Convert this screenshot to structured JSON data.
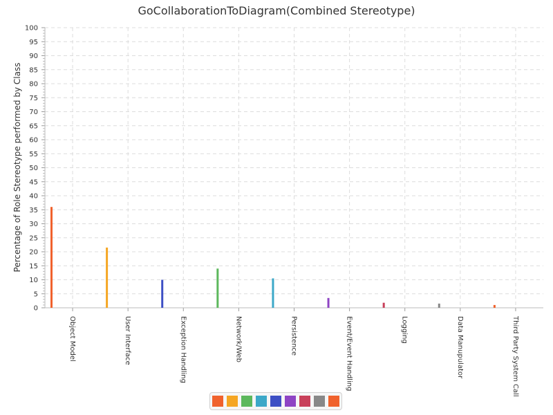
{
  "chart_data": {
    "type": "bar",
    "title": "GoCollaborationToDiagram(Combined Stereotype)",
    "xlabel": "",
    "ylabel": "Percentage of Role Stereotype performed by Class",
    "ylim": [
      0,
      100
    ],
    "ytick_step": 5,
    "yticks": [
      "0",
      "5",
      "10",
      "15",
      "20",
      "25",
      "30",
      "35",
      "40",
      "45",
      "50",
      "55",
      "60",
      "65",
      "70",
      "75",
      "80",
      "85",
      "90",
      "95",
      "100"
    ],
    "grid": true,
    "legend_position": "bottom",
    "categories": [
      "Object Model",
      "User Interface",
      "Exception Handling",
      "Network/Web",
      "Persistence",
      "Event/Event Handling",
      "Logging",
      "Data Manupulator",
      "Third Party System Call"
    ],
    "values": [
      36,
      21.5,
      10,
      14,
      10.5,
      3.5,
      1.8,
      1.5,
      1
    ],
    "colors": [
      "#f0622d",
      "#f5a623",
      "#3d4fc4",
      "#5cb85c",
      "#3ca8c8",
      "#8e44c4",
      "#c8405a",
      "#888888",
      "#f0622d"
    ],
    "legend_colors": [
      "#f0622d",
      "#f5a623",
      "#5cb85c",
      "#3ca8c8",
      "#3d4fc4",
      "#8e44c4",
      "#c8405a",
      "#888888",
      "#f0622d"
    ]
  }
}
